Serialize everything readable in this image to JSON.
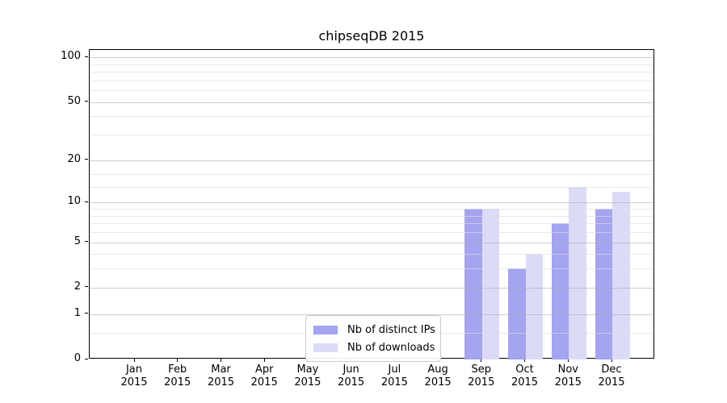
{
  "chart_data": {
    "type": "bar",
    "title": "chipseqDB 2015",
    "categories": [
      "Jan",
      "Feb",
      "Mar",
      "Apr",
      "May",
      "Jun",
      "Jul",
      "Aug",
      "Sep",
      "Oct",
      "Nov",
      "Dec"
    ],
    "year": "2015",
    "series": [
      {
        "name": "Nb of distinct IPs",
        "color": "#a4a4f1",
        "values": [
          0,
          0,
          0,
          0,
          0,
          0,
          0,
          0,
          9,
          3,
          7,
          9
        ]
      },
      {
        "name": "Nb of downloads",
        "color": "#dbdbf8",
        "values": [
          0,
          0,
          0,
          0,
          0,
          0,
          0,
          0,
          9,
          4,
          13,
          12
        ]
      }
    ],
    "y_axis": {
      "scale": "log1p",
      "ticks": [
        0,
        1,
        2,
        5,
        10,
        20,
        50,
        100
      ],
      "minor_gridlines": [
        0.5,
        3,
        4,
        6,
        7,
        8,
        9,
        13,
        16,
        30,
        40,
        60,
        70,
        80,
        90
      ],
      "max": 112
    },
    "x_axis": {
      "label_line2": "2015"
    },
    "legend": {
      "position": "lower-center",
      "entries": [
        "Nb of distinct IPs",
        "Nb of downloads"
      ]
    },
    "grid": {
      "major": true,
      "minor": true
    },
    "colors": {
      "spine": "#000000",
      "text": "#000000"
    }
  }
}
